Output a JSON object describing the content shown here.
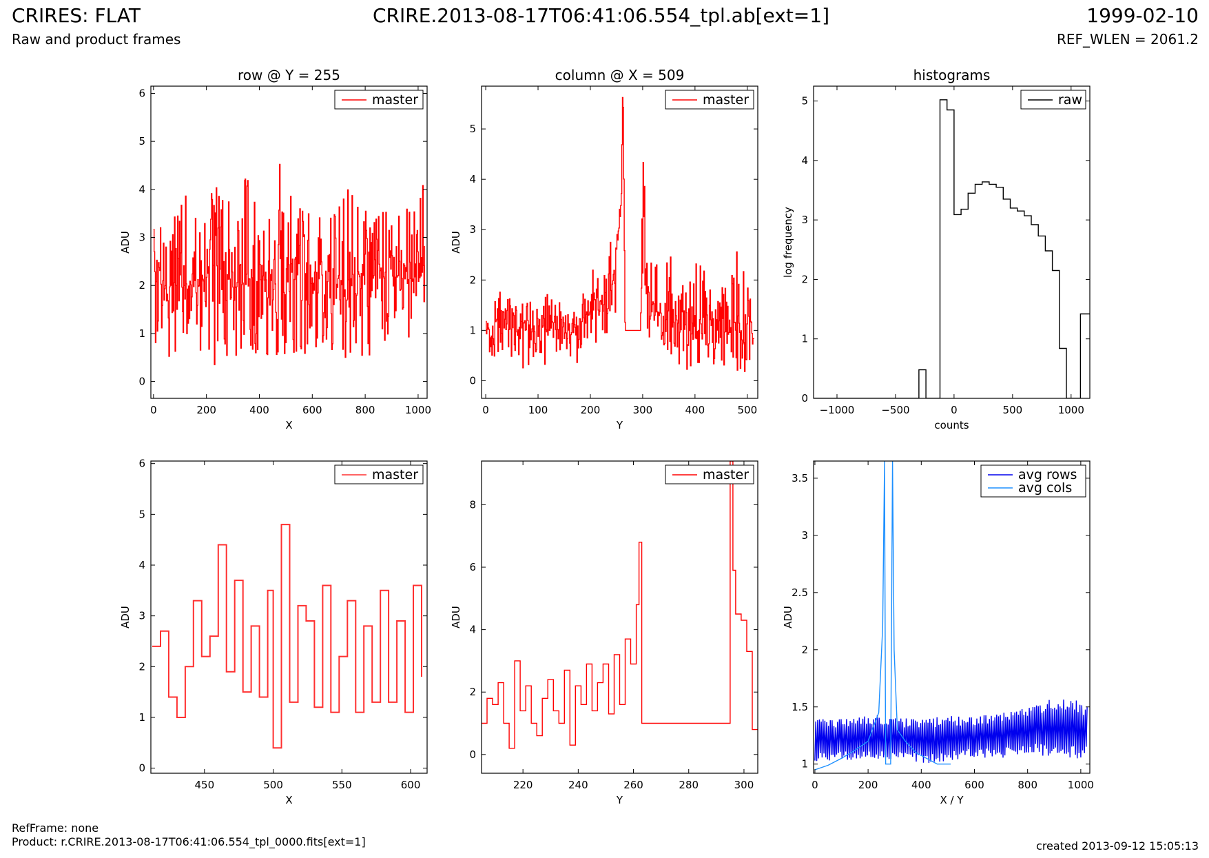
{
  "header": {
    "title": "CRIRES: FLAT",
    "subtitle": "Raw and product frames",
    "file": "CRIRE.2013-08-17T06:41:06.554_tpl.ab[ext=1]",
    "date": "1999-02-10",
    "ref_wlen": "REF_WLEN = 2061.2"
  },
  "footer": {
    "refframe": "RefFrame: none",
    "product": "Product: r.CRIRE.2013-08-17T06:41:06.554_tpl_0000.fits[ext=1]",
    "created": "created 2013-09-12 15:05:13"
  },
  "colors": {
    "master": "#ff0000",
    "raw": "#000000",
    "avg_rows": "#0000ee",
    "avg_cols": "#1e90ff"
  },
  "chart_data": [
    {
      "type": "line",
      "title": "row @ Y = 255",
      "xlabel": "X",
      "ylabel": "ADU",
      "xlim": [
        -10,
        1034
      ],
      "ylim": [
        -0.35,
        6.15
      ],
      "xticks": [
        0,
        200,
        400,
        600,
        800,
        1000
      ],
      "yticks": [
        0,
        1,
        2,
        3,
        4,
        5,
        6
      ],
      "legend": "top-right",
      "series": [
        {
          "name": "master",
          "color": "#ff0000",
          "step": true,
          "x": [
            0,
            60,
            120,
            180,
            240,
            300,
            360,
            420,
            480,
            540,
            600,
            660,
            720,
            780,
            840,
            900,
            960,
            1024
          ],
          "y": [
            2.1,
            2.0,
            2.0,
            2.1,
            2.2,
            2.1,
            2.2,
            2.1,
            2.3,
            2.2,
            2.1,
            2.2,
            2.1,
            2.2,
            2.1,
            2.2,
            2.1,
            2.2
          ],
          "min": [
            0.2,
            0.5,
            0.5,
            0.6,
            0.1,
            0.5,
            0.6,
            0.5,
            0.4,
            0.6,
            0.5,
            0.5,
            0.4,
            0.5,
            0.5,
            0.5,
            0.6,
            0.5
          ],
          "max": [
            3.2,
            3.4,
            4.0,
            3.6,
            4.3,
            3.6,
            4.5,
            3.6,
            4.8,
            3.6,
            3.8,
            3.5,
            4.2,
            3.7,
            3.5,
            3.7,
            3.8,
            4.4
          ]
        }
      ]
    },
    {
      "type": "line",
      "title": "column @ X = 509",
      "xlabel": "Y",
      "ylabel": "ADU",
      "xlim": [
        -8,
        520
      ],
      "ylim": [
        -0.35,
        5.85
      ],
      "xticks": [
        0,
        100,
        200,
        300,
        400,
        500
      ],
      "yticks": [
        0,
        1,
        2,
        3,
        4,
        5
      ],
      "legend": "top-right",
      "series": [
        {
          "name": "master",
          "color": "#ff0000",
          "step": true,
          "x": [
            0,
            20,
            40,
            60,
            80,
            100,
            120,
            140,
            160,
            180,
            200,
            220,
            240,
            250,
            258,
            262,
            266,
            295,
            300,
            310,
            330,
            360,
            380,
            400,
            420,
            440,
            460,
            480,
            500,
            512
          ],
          "y": [
            1.0,
            1.2,
            1.0,
            1.1,
            1.0,
            1.1,
            1.0,
            1.0,
            0.9,
            1.2,
            1.4,
            1.6,
            1.8,
            2.6,
            3.4,
            5.9,
            1.0,
            1.0,
            2.3,
            1.4,
            1.3,
            1.2,
            1.0,
            1.0,
            0.9,
            1.0,
            1.0,
            1.0,
            1.0,
            1.0
          ],
          "min": [
            0.5,
            0.4,
            0.3,
            0.3,
            0.2,
            0.3,
            0.3,
            0.4,
            0.2,
            0.4,
            0.6,
            0.7,
            1.0,
            1.3,
            2.0,
            5.9,
            1.0,
            1.0,
            1.0,
            0.6,
            0.4,
            0.3,
            0.1,
            0.3,
            0.3,
            0.2,
            0.2,
            0.2,
            0.1,
            0.8
          ],
          "max": [
            1.5,
            1.8,
            1.7,
            1.5,
            1.6,
            1.8,
            1.7,
            1.6,
            1.4,
            1.7,
            2.3,
            2.5,
            2.8,
            3.3,
            4.8,
            5.9,
            1.0,
            1.0,
            4.5,
            2.7,
            2.3,
            2.9,
            1.9,
            2.5,
            2.2,
            2.0,
            2.1,
            2.6,
            2.1,
            1.1
          ]
        }
      ]
    },
    {
      "type": "line",
      "title": "histograms",
      "xlabel": "counts",
      "ylabel": "log frequency",
      "xlim": [
        -1200,
        1160
      ],
      "ylim": [
        0,
        5.25
      ],
      "xticks": [
        -1000,
        -500,
        0,
        500,
        1000
      ],
      "yticks": [
        0,
        1,
        2,
        3,
        4,
        5
      ],
      "legend": "top-right",
      "series": [
        {
          "name": "raw",
          "color": "#000000",
          "step": true,
          "x": [
            -1200,
            -300,
            -240,
            -120,
            -60,
            0,
            60,
            120,
            180,
            240,
            300,
            360,
            420,
            480,
            540,
            600,
            660,
            720,
            780,
            840,
            900,
            960,
            1020,
            1080,
            1160
          ],
          "y": [
            0,
            0.48,
            0,
            5.02,
            4.85,
            3.09,
            3.18,
            3.45,
            3.6,
            3.64,
            3.6,
            3.55,
            3.35,
            3.2,
            3.15,
            3.07,
            2.92,
            2.73,
            2.48,
            2.15,
            0.84,
            0,
            0,
            1.42,
            1.42
          ]
        }
      ]
    },
    {
      "type": "line",
      "xlabel": "X",
      "ylabel": "ADU",
      "xlim": [
        411,
        612
      ],
      "ylim": [
        -0.1,
        6.05
      ],
      "xticks": [
        450,
        500,
        550,
        600
      ],
      "yticks": [
        0,
        1,
        2,
        3,
        4,
        5,
        6
      ],
      "legend": "top-right",
      "series": [
        {
          "name": "master",
          "color": "#ff3030",
          "step": true,
          "x": [
            412,
            418,
            424,
            430,
            436,
            442,
            448,
            454,
            460,
            466,
            472,
            478,
            484,
            490,
            496,
            500,
            506,
            512,
            518,
            524,
            530,
            536,
            542,
            548,
            554,
            560,
            566,
            572,
            578,
            584,
            590,
            596,
            602,
            608
          ],
          "y": [
            2.4,
            2.7,
            1.4,
            1.0,
            2.0,
            3.3,
            2.2,
            2.6,
            4.4,
            1.9,
            3.7,
            1.5,
            2.8,
            1.4,
            3.5,
            0.4,
            4.8,
            1.3,
            3.2,
            2.9,
            1.2,
            3.6,
            1.1,
            2.2,
            3.3,
            1.1,
            2.8,
            1.3,
            3.5,
            1.3,
            2.9,
            1.1,
            3.6,
            1.8
          ]
        }
      ]
    },
    {
      "type": "line",
      "xlabel": "Y",
      "ylabel": "ADU",
      "xlim": [
        205,
        305
      ],
      "ylim": [
        -0.6,
        9.4
      ],
      "xticks": [
        220,
        240,
        260,
        280,
        300
      ],
      "yticks": [
        0,
        2,
        4,
        6,
        8
      ],
      "legend": "top-right",
      "series": [
        {
          "name": "master",
          "color": "#ff0000",
          "step": true,
          "x": [
            205,
            207,
            209,
            211,
            213,
            215,
            217,
            219,
            221,
            223,
            225,
            227,
            229,
            231,
            233,
            235,
            237,
            239,
            241,
            243,
            245,
            247,
            249,
            251,
            253,
            255,
            257,
            259,
            261,
            262,
            263,
            295,
            296,
            297,
            299,
            301,
            303,
            305
          ],
          "y": [
            1.0,
            1.8,
            1.6,
            2.3,
            1.0,
            0.2,
            3.0,
            1.4,
            2.2,
            1.0,
            0.6,
            1.8,
            2.4,
            1.4,
            1.0,
            2.7,
            0.3,
            2.2,
            1.6,
            2.9,
            1.4,
            2.3,
            2.9,
            1.3,
            3.2,
            1.6,
            3.7,
            2.9,
            4.8,
            6.8,
            1.0,
            9.4,
            5.9,
            4.5,
            4.3,
            3.3,
            0.8,
            0.8
          ]
        }
      ]
    },
    {
      "type": "line",
      "xlabel": "X / Y",
      "ylabel": "ADU",
      "xlim": [
        -5,
        1034
      ],
      "ylim": [
        0.92,
        3.65
      ],
      "xticks": [
        0,
        200,
        400,
        600,
        800,
        1000
      ],
      "yticks": [
        1.0,
        1.5,
        2.0,
        2.5,
        3.0,
        3.5
      ],
      "legend": "top-right",
      "series": [
        {
          "name": "avg rows",
          "color": "#0000ee",
          "step": false,
          "x": [
            0,
            100,
            200,
            300,
            400,
            500,
            600,
            700,
            800,
            900,
            1000,
            1024
          ],
          "y": [
            1.2,
            1.22,
            1.24,
            1.22,
            1.2,
            1.22,
            1.24,
            1.25,
            1.3,
            1.32,
            1.3,
            1.3
          ],
          "min": [
            1.0,
            1.05,
            1.05,
            1.05,
            1.0,
            1.05,
            1.05,
            1.05,
            1.1,
            1.1,
            1.1,
            1.1
          ],
          "max": [
            1.4,
            1.4,
            1.45,
            1.4,
            1.4,
            1.42,
            1.42,
            1.45,
            1.5,
            1.6,
            1.55,
            1.5
          ]
        },
        {
          "name": "avg cols",
          "color": "#1e90ff",
          "step": false,
          "x": [
            0,
            50,
            100,
            150,
            200,
            240,
            255,
            262,
            266,
            285,
            292,
            298,
            310,
            340,
            380,
            420,
            460,
            511
          ],
          "y": [
            0.95,
            0.99,
            1.05,
            1.12,
            1.2,
            1.45,
            2.2,
            3.65,
            1.0,
            1.0,
            3.65,
            2.0,
            1.3,
            1.2,
            1.1,
            1.05,
            1.0,
            1.0
          ]
        }
      ]
    }
  ]
}
